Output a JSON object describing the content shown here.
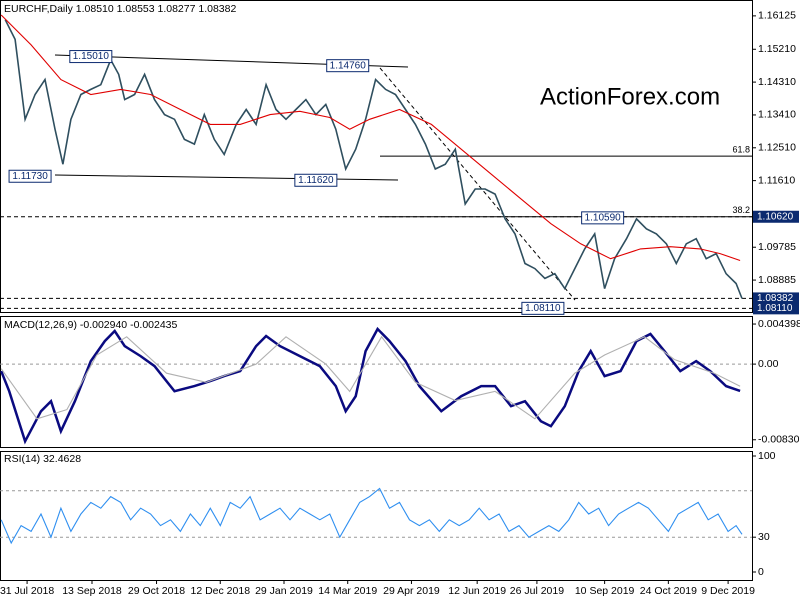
{
  "chart_data": [
    {
      "type": "line",
      "title": "EURCHF,Daily  1.08510 1.08553 1.08277 1.08382",
      "watermark": "ActionForex.com",
      "xlim": [
        -13.6,
        364
      ],
      "xticks": [
        {
          "value": 0,
          "label": "31 Jul 2018"
        },
        {
          "value": 32.6,
          "label": "13 Sep 2018"
        },
        {
          "value": 65,
          "label": "29 Oct 2018"
        },
        {
          "value": 97,
          "label": "12 Dec 2018"
        },
        {
          "value": 129,
          "label": "29 Jan 2019"
        },
        {
          "value": 161,
          "label": "14 Mar 2019"
        },
        {
          "value": 193,
          "label": "29 Apr 2019"
        },
        {
          "value": 226,
          "label": "12 Jun 2019"
        },
        {
          "value": 256,
          "label": "26 Jul 2019"
        },
        {
          "value": 290,
          "label": "10 Sep 2019"
        },
        {
          "value": 322,
          "label": "24 Oct 2019"
        },
        {
          "value": 352,
          "label": "9 Dec 2019"
        }
      ],
      "ylim": [
        1.0801,
        1.1656
      ],
      "yticks": [
        1.16125,
        {
          "value": 1.1521,
          "label": "1.15210"
        },
        {
          "value": 1.1431,
          "label": "1.14310"
        },
        {
          "value": 1.1341,
          "label": "1.13410"
        },
        {
          "value": 1.1251,
          "label": "1.12510"
        },
        {
          "value": 1.1161,
          "label": "1.11610"
        },
        1.09785,
        1.08885
      ],
      "highlight_labels": [
        {
          "value": 1.1062,
          "label": "1.10620"
        },
        {
          "value": 1.08382,
          "label": "1.08382"
        },
        {
          "value": 1.0811,
          "label": "1.08110"
        }
      ],
      "levels": [
        {
          "value": 1.1228,
          "label": "61.8"
        },
        {
          "value": 1.1062,
          "label": "38.2"
        }
      ],
      "price_labels": [
        {
          "x": 32,
          "value": 1.1501,
          "label": "1.15010"
        },
        {
          "x": 161,
          "value": 1.1476,
          "label": "1.14760"
        },
        {
          "x": 1.5,
          "value": 1.1173,
          "label": "1.11730"
        },
        {
          "x": 145,
          "value": 1.1162,
          "label": "1.11620"
        },
        {
          "x": 289,
          "value": 1.1059,
          "label": "1.10590"
        },
        {
          "x": 259,
          "value": 1.0811,
          "label": "1.08110"
        }
      ],
      "series": [
        {
          "color": "#2f4f5f",
          "x": [
            -11,
            -6,
            -1,
            4,
            9,
            14,
            18,
            22,
            27,
            32,
            37,
            42,
            46,
            49,
            54,
            59,
            64,
            69,
            74,
            79,
            84,
            89,
            94,
            99,
            105,
            110,
            115,
            120,
            125,
            130,
            135,
            140,
            145,
            150,
            155,
            160,
            165,
            170,
            175,
            180,
            185,
            190,
            195,
            200,
            205,
            210,
            215,
            220,
            225,
            230,
            235,
            240,
            245,
            250,
            255,
            260,
            265,
            270,
            275,
            280,
            285,
            290,
            295,
            301,
            306,
            311,
            316,
            321,
            326,
            331,
            336,
            341,
            346,
            351,
            356,
            359
          ],
          "values": [
            1.1602,
            1.1548,
            1.1329,
            1.1397,
            1.1438,
            1.1302,
            1.1206,
            1.1329,
            1.1397,
            1.1411,
            1.1424,
            1.1492,
            1.1452,
            1.1383,
            1.1397,
            1.1452,
            1.1383,
            1.1342,
            1.1329,
            1.1274,
            1.1261,
            1.1342,
            1.1274,
            1.1233,
            1.1315,
            1.1356,
            1.1315,
            1.1424,
            1.1356,
            1.1329,
            1.1356,
            1.1383,
            1.1342,
            1.137,
            1.1302,
            1.1193,
            1.1247,
            1.1329,
            1.1438,
            1.1411,
            1.1397,
            1.1356,
            1.1315,
            1.1261,
            1.1193,
            1.1206,
            1.1247,
            1.1097,
            1.1138,
            1.1138,
            1.1124,
            1.1056,
            1.1015,
            1.0934,
            1.092,
            1.0893,
            1.0906,
            1.0865,
            1.092,
            1.0974,
            1.1015,
            1.0865,
            1.0947,
            1.1002,
            1.1056,
            1.1029,
            1.1015,
            1.0988,
            1.0934,
            1.0988,
            1.1002,
            1.0947,
            1.0961,
            1.0906,
            1.0879,
            1.0838
          ]
        },
        {
          "color": "#e00000",
          "x": [
            -13,
            2,
            17,
            32,
            47,
            62,
            77,
            92,
            107,
            122,
            137,
            152,
            162,
            172,
            187,
            203,
            218,
            233,
            248,
            263,
            278,
            293,
            308,
            323,
            338,
            348,
            358
          ],
          "values": [
            1.1615,
            1.1533,
            1.1438,
            1.1397,
            1.1411,
            1.1397,
            1.1356,
            1.1315,
            1.1315,
            1.1342,
            1.1351,
            1.1334,
            1.1302,
            1.1329,
            1.1356,
            1.1315,
            1.1247,
            1.1179,
            1.1111,
            1.1043,
            1.0988,
            1.0947,
            1.0974,
            1.098,
            1.0974,
            1.0961,
            1.0942
          ]
        }
      ]
    },
    {
      "type": "line",
      "title": "MACD(12,26,9) -0.002940 -0.002435",
      "xlim": [
        -13.6,
        364
      ],
      "ylim": [
        -0.0091,
        0.00528
      ],
      "yticks": [
        0.004398,
        {
          "value": 0,
          "label": "0.00"
        },
        -0.008306
      ],
      "levels": [
        {
          "value": 0
        }
      ],
      "series": [
        {
          "color": "#0a0a80",
          "x": [
            -13,
            -9,
            -1,
            7,
            12,
            17,
            24,
            32,
            39,
            44,
            49,
            57,
            64,
            74,
            84,
            92,
            99,
            107,
            115,
            120,
            127,
            137,
            147,
            155,
            160,
            165,
            170,
            176,
            182,
            190,
            197,
            208,
            218,
            228,
            235,
            243,
            250,
            258,
            263,
            270,
            277,
            283,
            290,
            298,
            306,
            313,
            320,
            328,
            336,
            343,
            351,
            358
          ],
          "values": [
            -0.00077,
            -0.00297,
            -0.00847,
            -0.00517,
            -0.00407,
            -0.00737,
            -0.00407,
            0.00033,
            0.00253,
            0.00363,
            0.00198,
            0.00088,
            -0.00022,
            -0.00297,
            -0.00242,
            -0.00187,
            -0.00132,
            -0.00077,
            0.00198,
            0.00308,
            0.00198,
            0.00088,
            -0.00022,
            -0.00242,
            -0.00517,
            -0.00352,
            0.00143,
            0.00385,
            0.00253,
            0.00033,
            -0.00242,
            -0.00517,
            -0.00352,
            -0.00242,
            -0.00242,
            -0.00462,
            -0.00407,
            -0.00627,
            -0.00682,
            -0.00462,
            -0.00077,
            0.00143,
            -0.00132,
            -0.00077,
            0.00253,
            0.0033,
            0.00143,
            -0.00077,
            0.00033,
            -0.00077,
            -0.00242,
            -0.00294
          ]
        },
        {
          "color": "#b0b0b0",
          "x": [
            -13,
            5,
            20,
            35,
            50,
            70,
            90,
            115,
            130,
            150,
            162,
            178,
            195,
            215,
            235,
            255,
            275,
            290,
            310,
            325,
            345,
            358
          ],
          "values": [
            -0.0005,
            -0.006,
            -0.005,
            0.001,
            0.003,
            -0.001,
            -0.002,
            0,
            0.003,
            0,
            -0.003,
            0.003,
            -0.002,
            -0.004,
            -0.003,
            -0.006,
            -0.001,
            0.001,
            0.003,
            0.0005,
            -0.001,
            -0.002435
          ]
        }
      ]
    },
    {
      "type": "line",
      "title": "RSI(14) 32.4628",
      "xlim": [
        -13.6,
        364
      ],
      "ylim": [
        -6.9,
        104.3
      ],
      "yticks": [
        100,
        30,
        0
      ],
      "levels": [
        {
          "value": 70
        },
        {
          "value": 30
        }
      ],
      "series": [
        {
          "color": "#2f8ff0",
          "x": [
            -13,
            -8,
            -3,
            2,
            7,
            12,
            17,
            22,
            27,
            32,
            37,
            42,
            47,
            52,
            57,
            62,
            67,
            72,
            77,
            82,
            87,
            92,
            97,
            102,
            107,
            112,
            117,
            122,
            127,
            132,
            137,
            142,
            147,
            152,
            157,
            162,
            167,
            172,
            177,
            182,
            187,
            192,
            197,
            202,
            207,
            212,
            217,
            222,
            227,
            232,
            237,
            242,
            247,
            252,
            257,
            262,
            267,
            272,
            277,
            282,
            287,
            292,
            297,
            302,
            307,
            312,
            317,
            322,
            327,
            332,
            337,
            342,
            347,
            352,
            356,
            359
          ],
          "values": [
            45,
            25,
            40,
            35,
            50,
            30,
            55,
            35,
            50,
            60,
            55,
            65,
            60,
            45,
            55,
            50,
            40,
            45,
            35,
            50,
            40,
            55,
            40,
            60,
            55,
            65,
            45,
            50,
            55,
            45,
            55,
            50,
            45,
            50,
            30,
            45,
            60,
            65,
            72,
            55,
            60,
            45,
            40,
            45,
            35,
            45,
            40,
            45,
            55,
            45,
            50,
            35,
            40,
            30,
            35,
            40,
            35,
            45,
            60,
            50,
            55,
            40,
            50,
            55,
            60,
            55,
            45,
            35,
            50,
            55,
            60,
            45,
            50,
            35,
            40,
            32.4628
          ]
        }
      ]
    }
  ]
}
